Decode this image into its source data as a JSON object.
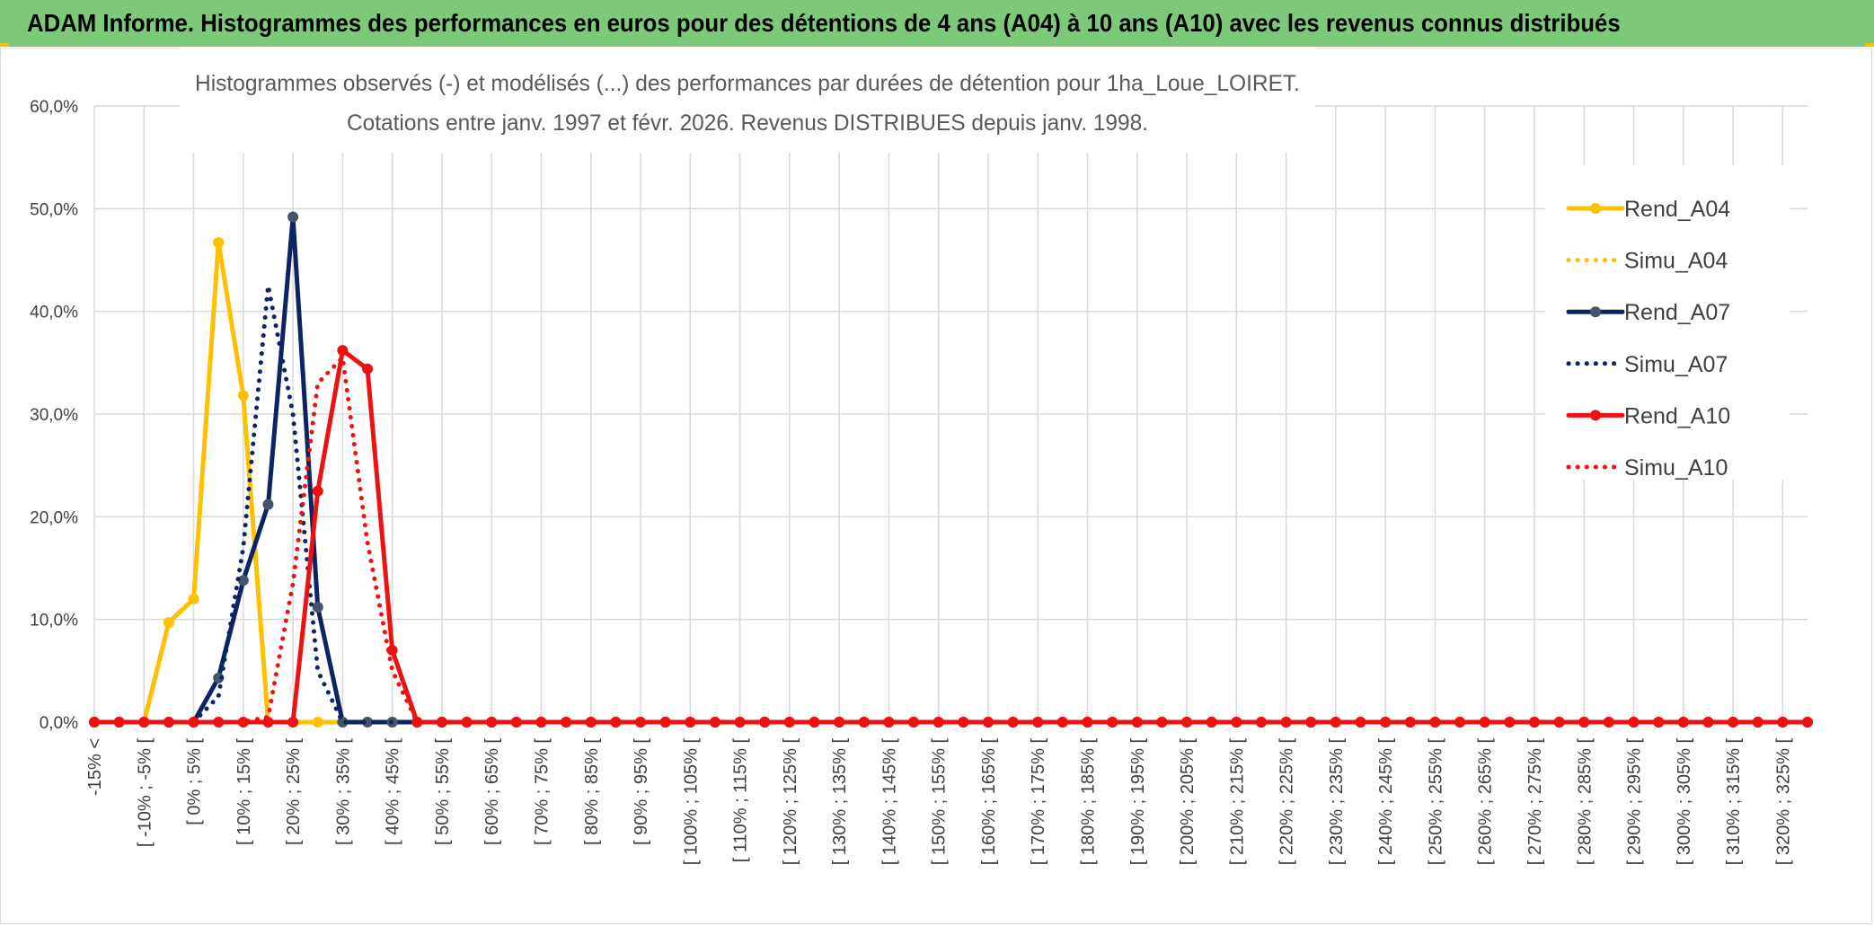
{
  "banner": {
    "title": "ADAM Informe. Histogrammes des performances en euros pour des détentions de 4 ans (A04) à 10 ans (A10) avec les revenus connus distribués"
  },
  "colors": {
    "banner_bg": "#7dc97a",
    "grid": "#d9d9d9",
    "axis_text": "#404040",
    "A04": "#ffc000",
    "A07": "#0c2461",
    "A10": "#ee1111"
  },
  "chart_data": {
    "type": "line",
    "title_line1": "Histogrammes observés (-) et modélisés (...) des performances par durées de détention pour 1ha_Loue_LOIRET.",
    "title_line2": "Cotations entre janv. 1997 et févr. 2026. Revenus DISTRIBUES depuis janv. 1998.",
    "xlabel": "",
    "ylabel": "",
    "ylim": [
      0,
      60
    ],
    "y_ticks": [
      "0,0%",
      "10,0%",
      "20,0%",
      "30,0%",
      "40,0%",
      "50,0%",
      "60,0%"
    ],
    "grid": true,
    "legend_position": "right",
    "categories": [
      "-15% <",
      "[ -15% ; -10% [",
      "[ -10% ; -5% [",
      "[ -5% ; 0% [",
      "[ 0% ; 5% [",
      "[ 5% ; 10% [",
      "[ 10% ; 15% [",
      "[ 15% ; 20% [",
      "[ 20% ; 25% [",
      "[ 25% ; 30% [",
      "[ 30% ; 35% [",
      "[ 35% ; 40% [",
      "[ 40% ; 45% [",
      "[ 45% ; 50% [",
      "[ 50% ; 55% [",
      "[ 55% ; 60% [",
      "[ 60% ; 65% [",
      "[ 65% ; 70% [",
      "[ 70% ; 75% [",
      "[ 75% ; 80% [",
      "[ 80% ; 85% [",
      "[ 85% ; 90% [",
      "[ 90% ; 95% [",
      "[ 95% ; 100% [",
      "[ 100% ; 105% [",
      "[ 105% ; 110% [",
      "[ 110% ; 115% [",
      "[ 115% ; 120% [",
      "[ 120% ; 125% [",
      "[ 125% ; 130% [",
      "[ 130% ; 135% [",
      "[ 135% ; 140% [",
      "[ 140% ; 145% [",
      "[ 145% ; 150% [",
      "[ 150% ; 155% [",
      "[ 155% ; 160% [",
      "[ 160% ; 165% [",
      "[ 165% ; 170% [",
      "[ 170% ; 175% [",
      "[ 175% ; 180% [",
      "[ 180% ; 185% [",
      "[ 185% ; 190% [",
      "[ 190% ; 195% [",
      "[ 195% ; 200% [",
      "[ 200% ; 205% [",
      "[ 205% ; 210% [",
      "[ 210% ; 215% [",
      "[ 215% ; 220% [",
      "[ 220% ; 225% [",
      "[ 225% ; 230% [",
      "[ 230% ; 235% [",
      "[ 235% ; 240% [",
      "[ 240% ; 245% [",
      "[ 245% ; 250% [",
      "[ 250% ; 255% [",
      "[ 255% ; 260% [",
      "[ 260% ; 265% [",
      "[ 265% ; 270% [",
      "[ 270% ; 275% [",
      "[ 275% ; 280% [",
      "[ 280% ; 285% [",
      "[ 285% ; 290% [",
      "[ 290% ; 295% [",
      "[ 295% ; 300% [",
      "[ 300% ; 305% [",
      "[ 305% ; 310% [",
      "[ 310% ; 315% [",
      "[ 315% ; 320% [",
      "[ 320% ; 325% [",
      "[ 325% ; 330% ["
    ],
    "visible_tick_labels": [
      "-15% <",
      "[ -10% ; -5% [",
      "[ 0% ; 5% [",
      "[ 10% ; 15% [",
      "[ 20% ; 25% [",
      "[ 30% ; 35% [",
      "[ 40% ; 45% [",
      "[ 50% ; 55% [",
      "[ 60% ; 65% [",
      "[ 70% ; 75% [",
      "[ 80% ; 85% [",
      "[ 90% ; 95% [",
      "[ 100% ; 105% [",
      "[ 110% ; 115% [",
      "[ 120% ; 125% [",
      "[ 130% ; 135% [",
      "[ 140% ; 145% [",
      "[ 150% ; 155% [",
      "[ 160% ; 165% [",
      "[ 170% ; 175% [",
      "[ 180% ; 185% [",
      "[ 190% ; 195% [",
      "[ 200% ; 205% [",
      "[ 210% ; 215% [",
      "[ 220% ; 225% [",
      "[ 230% ; 235% [",
      "[ 240% ; 245% [",
      "[ 250% ; 255% [",
      "[ 260% ; 265% [",
      "[ 270% ; 275% [",
      "[ 280% ; 285% [",
      "[ 290% ; 295% [",
      "[ 300% ; 305% [",
      "[ 310% ; 315% [",
      "[ 320% ; 325% ["
    ],
    "series": [
      {
        "name": "Rend_A04",
        "key": "A04",
        "dashed": false,
        "markers": true,
        "values": [
          0,
          0,
          0,
          9.7,
          12,
          46.7,
          31.8,
          0,
          0,
          0,
          0,
          0,
          0,
          0,
          0,
          0,
          0,
          0,
          0,
          0,
          0,
          0,
          0,
          0,
          0,
          0,
          0,
          0,
          0,
          0,
          0,
          0,
          0,
          0,
          0,
          0,
          0,
          0,
          0,
          0,
          0,
          0,
          0,
          0,
          0,
          0,
          0,
          0,
          0,
          0,
          0,
          0,
          0,
          0,
          0,
          0,
          0,
          0,
          0,
          0,
          0,
          0,
          0,
          0,
          0,
          0,
          0,
          0,
          0,
          0
        ]
      },
      {
        "name": "Simu_A04",
        "key": "A04",
        "dashed": true,
        "markers": false,
        "values": [
          0,
          0,
          0,
          9.7,
          12,
          46.7,
          31.8,
          0,
          0,
          0,
          0,
          0,
          0,
          0,
          0,
          0,
          0,
          0,
          0,
          0,
          0,
          0,
          0,
          0,
          0,
          0,
          0,
          0,
          0,
          0,
          0,
          0,
          0,
          0,
          0,
          0,
          0,
          0,
          0,
          0,
          0,
          0,
          0,
          0,
          0,
          0,
          0,
          0,
          0,
          0,
          0,
          0,
          0,
          0,
          0,
          0,
          0,
          0,
          0,
          0,
          0,
          0,
          0,
          0,
          0,
          0,
          0,
          0,
          0,
          0
        ]
      },
      {
        "name": "Rend_A07",
        "key": "A07",
        "dashed": false,
        "markers": true,
        "values": [
          0,
          0,
          0,
          0,
          0,
          4.3,
          13.8,
          21.2,
          49.2,
          11.2,
          0,
          0,
          0,
          0,
          0,
          0,
          0,
          0,
          0,
          0,
          0,
          0,
          0,
          0,
          0,
          0,
          0,
          0,
          0,
          0,
          0,
          0,
          0,
          0,
          0,
          0,
          0,
          0,
          0,
          0,
          0,
          0,
          0,
          0,
          0,
          0,
          0,
          0,
          0,
          0,
          0,
          0,
          0,
          0,
          0,
          0,
          0,
          0,
          0,
          0,
          0,
          0,
          0,
          0,
          0,
          0,
          0,
          0,
          0,
          0
        ]
      },
      {
        "name": "Simu_A07",
        "key": "A07",
        "dashed": true,
        "markers": false,
        "values": [
          0,
          0,
          0,
          0,
          0,
          2.5,
          17,
          42.5,
          30,
          5,
          0,
          0,
          0,
          0,
          0,
          0,
          0,
          0,
          0,
          0,
          0,
          0,
          0,
          0,
          0,
          0,
          0,
          0,
          0,
          0,
          0,
          0,
          0,
          0,
          0,
          0,
          0,
          0,
          0,
          0,
          0,
          0,
          0,
          0,
          0,
          0,
          0,
          0,
          0,
          0,
          0,
          0,
          0,
          0,
          0,
          0,
          0,
          0,
          0,
          0,
          0,
          0,
          0,
          0,
          0,
          0,
          0,
          0,
          0,
          0
        ]
      },
      {
        "name": "Rend_A10",
        "key": "A10",
        "dashed": false,
        "markers": true,
        "values": [
          0,
          0,
          0,
          0,
          0,
          0,
          0,
          0,
          0,
          22.5,
          36.2,
          34.4,
          7,
          0,
          0,
          0,
          0,
          0,
          0,
          0,
          0,
          0,
          0,
          0,
          0,
          0,
          0,
          0,
          0,
          0,
          0,
          0,
          0,
          0,
          0,
          0,
          0,
          0,
          0,
          0,
          0,
          0,
          0,
          0,
          0,
          0,
          0,
          0,
          0,
          0,
          0,
          0,
          0,
          0,
          0,
          0,
          0,
          0,
          0,
          0,
          0,
          0,
          0,
          0,
          0,
          0,
          0,
          0,
          0,
          0
        ]
      },
      {
        "name": "Simu_A10",
        "key": "A10",
        "dashed": true,
        "markers": false,
        "values": [
          0,
          0,
          0,
          0,
          0,
          0,
          0,
          0.5,
          13.5,
          33,
          35.5,
          17.5,
          5,
          0,
          0,
          0,
          0,
          0,
          0,
          0,
          0,
          0,
          0,
          0,
          0,
          0,
          0,
          0,
          0,
          0,
          0,
          0,
          0,
          0,
          0,
          0,
          0,
          0,
          0,
          0,
          0,
          0,
          0,
          0,
          0,
          0,
          0,
          0,
          0,
          0,
          0,
          0,
          0,
          0,
          0,
          0,
          0,
          0,
          0,
          0,
          0,
          0,
          0,
          0,
          0,
          0,
          0,
          0,
          0,
          0
        ]
      }
    ]
  }
}
